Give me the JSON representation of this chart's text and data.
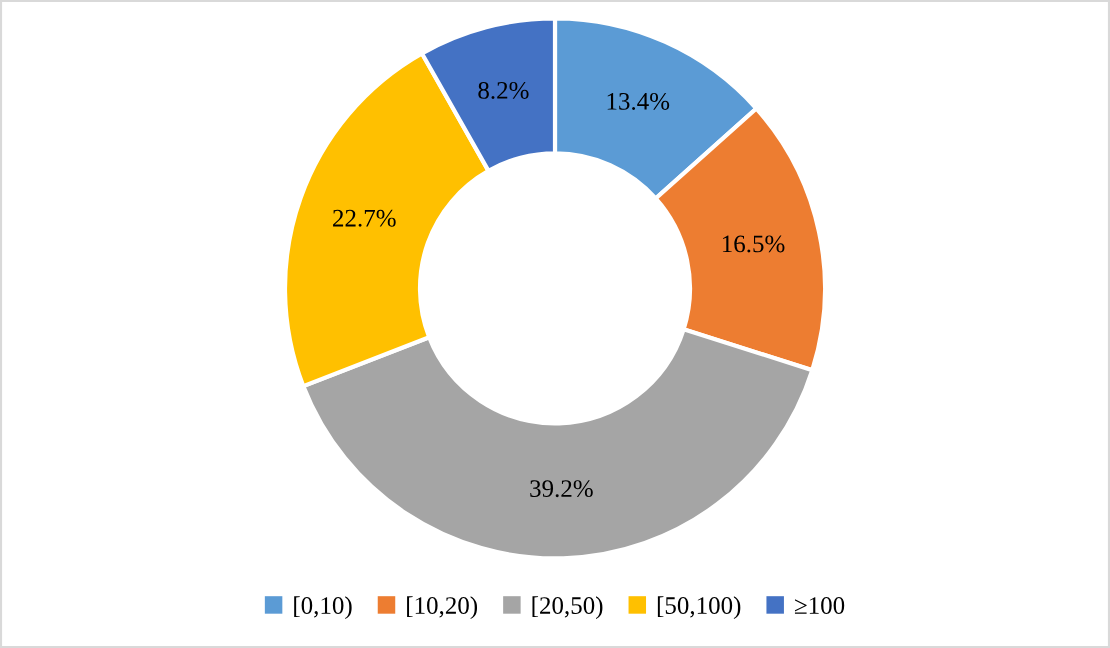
{
  "chart_data": {
    "type": "donut",
    "categories": [
      "[0,10)",
      "[10,20)",
      "[20,50)",
      "[50,100)",
      "≥100"
    ],
    "values": [
      13.4,
      16.5,
      39.2,
      22.7,
      8.2
    ],
    "colors": [
      "#5b9bd5",
      "#ed7d31",
      "#a5a5a5",
      "#ffc000",
      "#4472c4"
    ],
    "value_labels": [
      "13.4%",
      "16.5%",
      "39.2%",
      "22.7%",
      "8.2%"
    ],
    "legend": "bottom"
  }
}
